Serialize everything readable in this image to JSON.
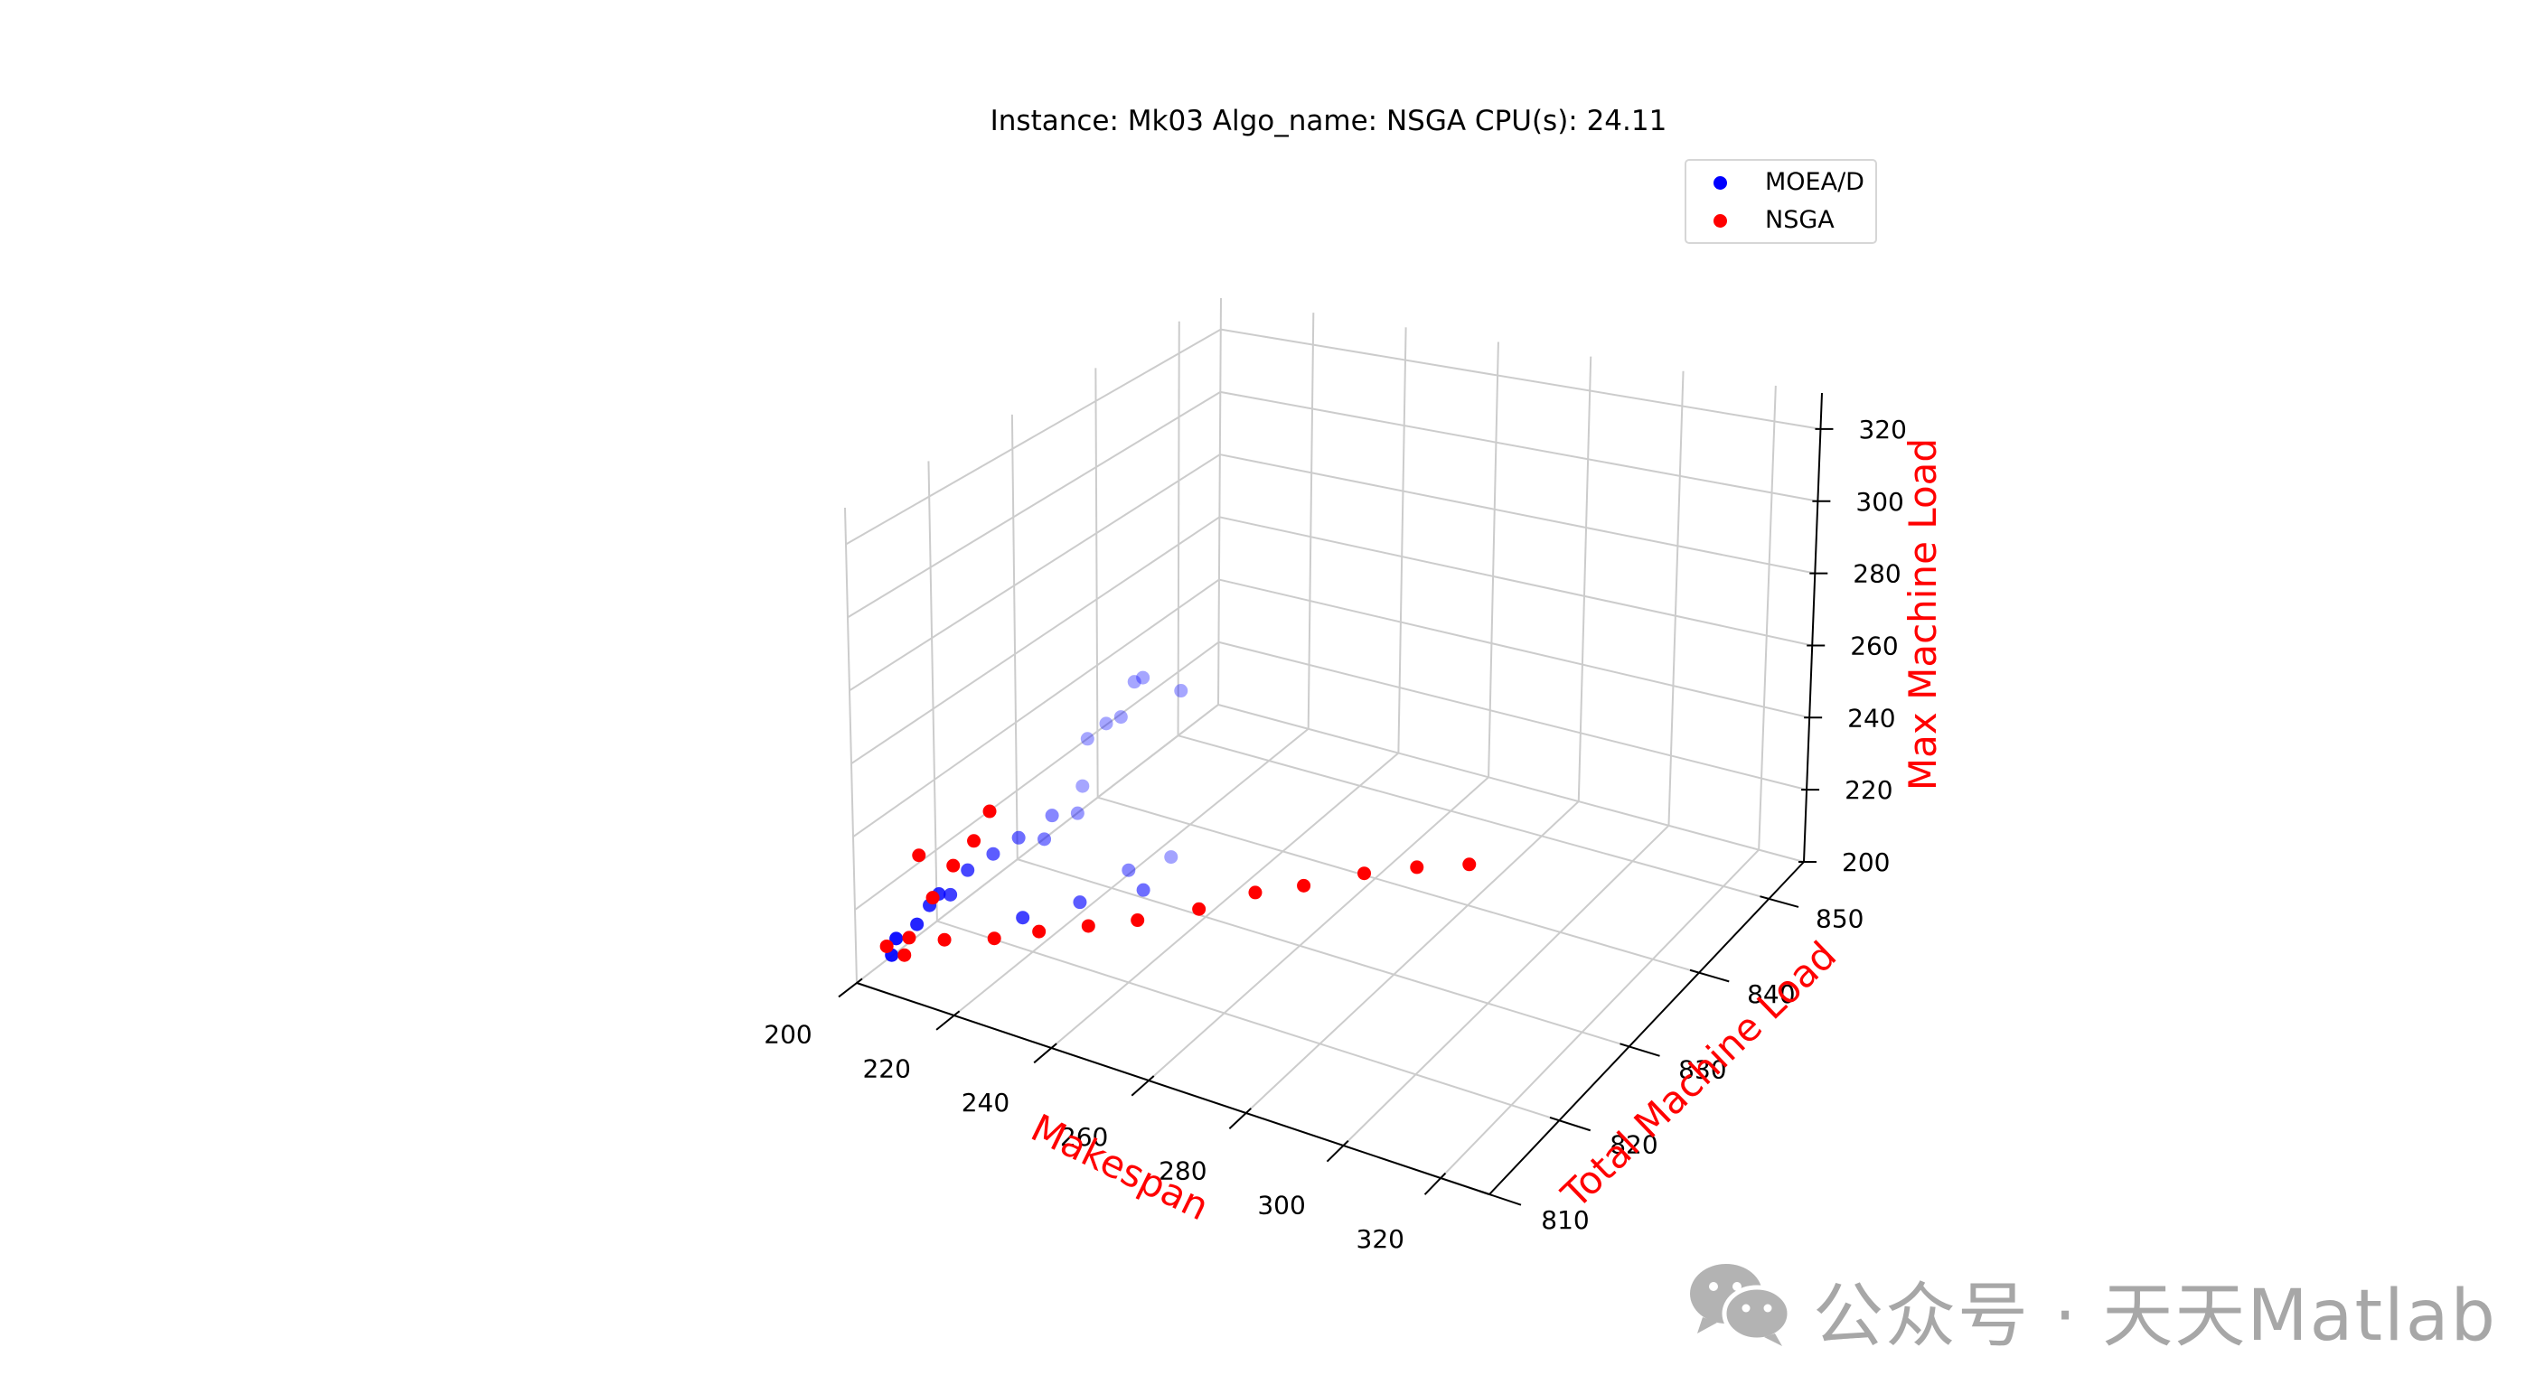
{
  "chart_data": {
    "type": "scatter",
    "projection": "3d",
    "title": "Instance: Mk03 Algo_name: NSGA CPU(s): 24.11",
    "xlabel": "Makespan",
    "ylabel": "Total Machine Load",
    "zlabel": "Max Machine Load",
    "label_color": "#ff0000",
    "xlim": [
      200,
      330
    ],
    "ylim": [
      810,
      855
    ],
    "zlim": [
      200,
      330
    ],
    "xticks": [
      200,
      220,
      240,
      260,
      280,
      300,
      320
    ],
    "yticks": [
      810,
      820,
      830,
      840,
      850
    ],
    "zticks": [
      200,
      220,
      240,
      260,
      280,
      300,
      320
    ],
    "grid": true,
    "legend_position": "top-right",
    "series": [
      {
        "name": "MOEA/D",
        "color": "#0000ff",
        "points": [
          [
            204,
            812,
            206
          ],
          [
            205,
            812,
            211
          ],
          [
            206,
            814,
            212
          ],
          [
            207,
            815,
            216
          ],
          [
            208,
            817,
            216
          ],
          [
            209,
            815,
            220
          ],
          [
            210,
            818,
            222
          ],
          [
            212,
            820,
            224
          ],
          [
            214,
            822,
            226
          ],
          [
            216,
            824,
            223
          ],
          [
            216,
            825,
            228
          ],
          [
            218,
            827,
            226
          ],
          [
            214,
            830,
            227
          ],
          [
            210,
            833,
            234
          ],
          [
            212,
            836,
            236
          ],
          [
            208,
            840,
            238
          ],
          [
            214,
            833,
            240
          ],
          [
            215,
            837,
            247
          ],
          [
            218,
            840,
            239
          ],
          [
            223,
            817,
            216
          ],
          [
            230,
            820,
            218
          ],
          [
            232,
            825,
            219
          ],
          [
            236,
            828,
            219
          ],
          [
            240,
            822,
            222
          ]
        ]
      },
      {
        "name": "NSGA",
        "color": "#ff0000",
        "points": [
          [
            203,
            812,
            208
          ],
          [
            206,
            813,
            210
          ],
          [
            206,
            816,
            216
          ],
          [
            207,
            818,
            222
          ],
          [
            208,
            820,
            226
          ],
          [
            205,
            815,
            229
          ],
          [
            208,
            822,
            231
          ],
          [
            210,
            810,
            212
          ],
          [
            215,
            812,
            215
          ],
          [
            222,
            814,
            215
          ],
          [
            228,
            816,
            216
          ],
          [
            235,
            818,
            217
          ],
          [
            242,
            820,
            218
          ],
          [
            250,
            823,
            219
          ],
          [
            257,
            826,
            221
          ],
          [
            264,
            828,
            222
          ],
          [
            272,
            831,
            223
          ],
          [
            280,
            833,
            224
          ],
          [
            288,
            835,
            224
          ]
        ]
      }
    ]
  },
  "watermark": {
    "text": "公众号 · 天天Matlab",
    "icon": "wechat-icon"
  }
}
